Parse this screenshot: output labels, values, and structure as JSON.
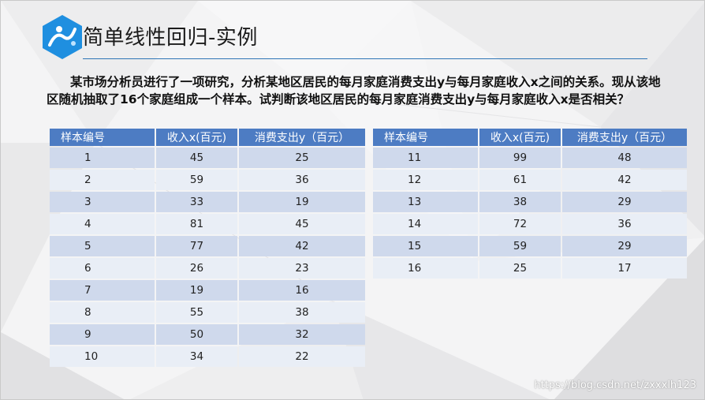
{
  "slide": {
    "title": "简单线性回归-实例",
    "intro": "某市场分析员进行了一项研究，分析某地区居民的每月家庭消费支出y与每月家庭收入x之间的关系。现从该地区随机抽取了16个家庭组成一个样本。试判断该地区居民的每月家庭消费支出y与每月家庭收入x是否相关？",
    "watermark": "https://blog.csdn.net/zxxxlh123",
    "accent_color": "#2e75b6",
    "header_color": "#4d7cc3"
  },
  "table_left": {
    "headers": [
      "样本编号",
      "收入x(百元)",
      "消费支出y（百元）"
    ],
    "rows": [
      [
        "1",
        "45",
        "25"
      ],
      [
        "2",
        "59",
        "36"
      ],
      [
        "3",
        "33",
        "19"
      ],
      [
        "4",
        "81",
        "45"
      ],
      [
        "5",
        "77",
        "42"
      ],
      [
        "6",
        "26",
        "23"
      ],
      [
        "7",
        "19",
        "16"
      ],
      [
        "8",
        "55",
        "38"
      ],
      [
        "9",
        "50",
        "32"
      ],
      [
        "10",
        "34",
        "22"
      ]
    ]
  },
  "table_right": {
    "headers": [
      "样本编号",
      "收入x(百元)",
      "消费支出y（百元）"
    ],
    "rows": [
      [
        "11",
        "99",
        "48"
      ],
      [
        "12",
        "61",
        "42"
      ],
      [
        "13",
        "38",
        "29"
      ],
      [
        "14",
        "72",
        "36"
      ],
      [
        "15",
        "59",
        "29"
      ],
      [
        "16",
        "25",
        "17"
      ]
    ]
  }
}
